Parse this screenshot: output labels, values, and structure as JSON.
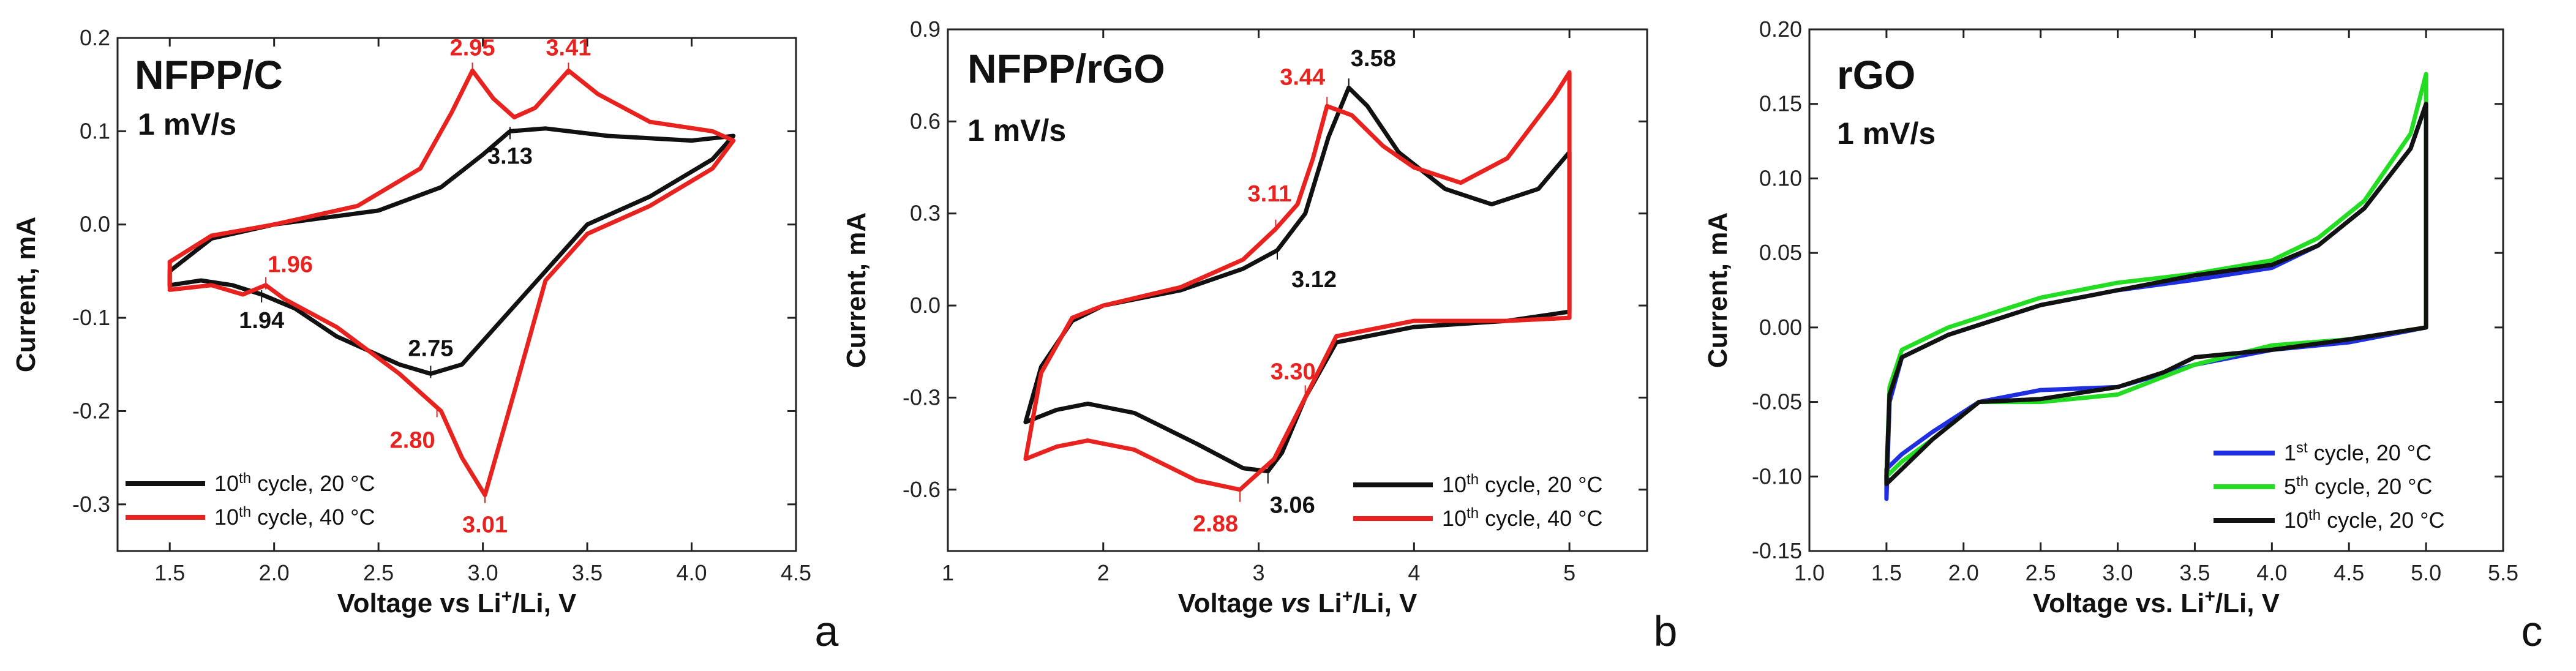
{
  "chart_data": [
    {
      "panel_id": "a",
      "type": "line",
      "title": "NFPP/C",
      "rate_label": "1 mV/s",
      "panel_letter": "a",
      "xlabel_parts": [
        "Voltage vs Li",
        "+",
        "/Li, V"
      ],
      "ylabel": "Current, mA",
      "xlim": [
        1.25,
        4.5
      ],
      "ylim": [
        -0.35,
        0.2
      ],
      "xticks": [
        "1.5",
        "2.0",
        "2.5",
        "3.0",
        "3.5",
        "4.0",
        "4.5"
      ],
      "yticks": [
        "-0.3",
        "-0.2",
        "-0.1",
        "0.0",
        "0.1",
        "0.2"
      ],
      "series": [
        {
          "name": "10th cycle, 20 °C",
          "legend_base": "10",
          "legend_sup": "th",
          "legend_rest": " cycle, 20 °C",
          "color": "#111111",
          "points": [
            [
              1.5,
              -0.05
            ],
            [
              1.7,
              -0.015
            ],
            [
              2.0,
              0.0
            ],
            [
              2.5,
              0.015
            ],
            [
              2.8,
              0.04
            ],
            [
              3.0,
              0.075
            ],
            [
              3.13,
              0.1
            ],
            [
              3.3,
              0.103
            ],
            [
              3.6,
              0.095
            ],
            [
              4.0,
              0.09
            ],
            [
              4.2,
              0.095
            ],
            [
              4.1,
              0.07
            ],
            [
              3.8,
              0.03
            ],
            [
              3.5,
              0.0
            ],
            [
              3.3,
              -0.05
            ],
            [
              3.1,
              -0.1
            ],
            [
              2.9,
              -0.15
            ],
            [
              2.75,
              -0.16
            ],
            [
              2.6,
              -0.15
            ],
            [
              2.3,
              -0.12
            ],
            [
              2.1,
              -0.09
            ],
            [
              1.94,
              -0.075
            ],
            [
              1.8,
              -0.065
            ],
            [
              1.65,
              -0.06
            ],
            [
              1.5,
              -0.065
            ]
          ]
        },
        {
          "name": "10th cycle, 40 °C",
          "legend_base": "10",
          "legend_sup": "th",
          "legend_rest": " cycle, 40 °C",
          "color": "#e8231f",
          "points": [
            [
              1.5,
              -0.04
            ],
            [
              1.7,
              -0.012
            ],
            [
              2.0,
              0.0
            ],
            [
              2.4,
              0.02
            ],
            [
              2.7,
              0.06
            ],
            [
              2.85,
              0.12
            ],
            [
              2.95,
              0.165
            ],
            [
              3.05,
              0.135
            ],
            [
              3.15,
              0.115
            ],
            [
              3.25,
              0.125
            ],
            [
              3.41,
              0.165
            ],
            [
              3.55,
              0.14
            ],
            [
              3.8,
              0.11
            ],
            [
              4.1,
              0.1
            ],
            [
              4.2,
              0.09
            ],
            [
              4.1,
              0.06
            ],
            [
              3.8,
              0.02
            ],
            [
              3.5,
              -0.01
            ],
            [
              3.3,
              -0.06
            ],
            [
              3.15,
              -0.18
            ],
            [
              3.01,
              -0.29
            ],
            [
              2.9,
              -0.25
            ],
            [
              2.8,
              -0.2
            ],
            [
              2.6,
              -0.16
            ],
            [
              2.3,
              -0.11
            ],
            [
              2.05,
              -0.08
            ],
            [
              1.96,
              -0.065
            ],
            [
              1.85,
              -0.075
            ],
            [
              1.7,
              -0.065
            ],
            [
              1.5,
              -0.07
            ]
          ]
        }
      ],
      "annotations": [
        {
          "text": "2.95",
          "x": 2.95,
          "y": 0.167,
          "color": "red"
        },
        {
          "text": "3.41",
          "x": 3.41,
          "y": 0.167,
          "color": "red"
        },
        {
          "text": "3.13",
          "x": 3.13,
          "y": 0.098,
          "color": "black"
        },
        {
          "text": "1.96",
          "x": 1.96,
          "y": -0.063,
          "color": "red"
        },
        {
          "text": "1.94",
          "x": 1.94,
          "y": -0.077,
          "color": "black"
        },
        {
          "text": "2.75",
          "x": 2.75,
          "y": -0.158,
          "color": "black"
        },
        {
          "text": "2.80",
          "x": 2.78,
          "y": -0.2,
          "color": "red"
        },
        {
          "text": "3.01",
          "x": 3.01,
          "y": -0.292,
          "color": "red"
        }
      ],
      "legend_position": "bottom-left"
    },
    {
      "panel_id": "b",
      "type": "line",
      "title": "NFPP/rGO",
      "rate_label": "1 mV/s",
      "panel_letter": "b",
      "xlabel_parts": [
        "Voltage ",
        "vs",
        " Li",
        "+",
        "/Li, V"
      ],
      "ylabel": "Current, mA",
      "xlim": [
        1,
        5.5
      ],
      "ylim": [
        -0.8,
        0.9
      ],
      "xticks": [
        "1",
        "2",
        "3",
        "4",
        "5"
      ],
      "yticks": [
        "-0.6",
        "-0.3",
        "0.0",
        "0.3",
        "0.6",
        "0.9"
      ],
      "series": [
        {
          "name": "10th cycle, 20 °C",
          "legend_base": "10",
          "legend_sup": "th",
          "legend_rest": " cycle, 20 °C",
          "color": "#111111",
          "points": [
            [
              1.5,
              -0.38
            ],
            [
              1.6,
              -0.2
            ],
            [
              1.8,
              -0.05
            ],
            [
              2.0,
              0.0
            ],
            [
              2.5,
              0.05
            ],
            [
              2.9,
              0.12
            ],
            [
              3.12,
              0.18
            ],
            [
              3.3,
              0.3
            ],
            [
              3.45,
              0.55
            ],
            [
              3.58,
              0.71
            ],
            [
              3.7,
              0.65
            ],
            [
              3.9,
              0.5
            ],
            [
              4.2,
              0.38
            ],
            [
              4.5,
              0.33
            ],
            [
              4.8,
              0.38
            ],
            [
              5.0,
              0.5
            ],
            [
              5.0,
              -0.02
            ],
            [
              4.6,
              -0.05
            ],
            [
              4.0,
              -0.07
            ],
            [
              3.5,
              -0.12
            ],
            [
              3.3,
              -0.3
            ],
            [
              3.15,
              -0.48
            ],
            [
              3.06,
              -0.54
            ],
            [
              2.9,
              -0.53
            ],
            [
              2.6,
              -0.45
            ],
            [
              2.2,
              -0.35
            ],
            [
              1.9,
              -0.32
            ],
            [
              1.7,
              -0.34
            ],
            [
              1.5,
              -0.38
            ]
          ]
        },
        {
          "name": "10th cycle, 40 °C",
          "legend_base": "10",
          "legend_sup": "th",
          "legend_rest": " cycle, 40 °C",
          "color": "#e8231f",
          "points": [
            [
              1.5,
              -0.5
            ],
            [
              1.6,
              -0.22
            ],
            [
              1.8,
              -0.04
            ],
            [
              2.0,
              0.0
            ],
            [
              2.5,
              0.06
            ],
            [
              2.9,
              0.15
            ],
            [
              3.11,
              0.25
            ],
            [
              3.25,
              0.33
            ],
            [
              3.35,
              0.48
            ],
            [
              3.44,
              0.65
            ],
            [
              3.6,
              0.62
            ],
            [
              3.8,
              0.52
            ],
            [
              4.0,
              0.45
            ],
            [
              4.3,
              0.4
            ],
            [
              4.6,
              0.48
            ],
            [
              4.9,
              0.68
            ],
            [
              5.0,
              0.76
            ],
            [
              5.0,
              -0.04
            ],
            [
              4.6,
              -0.05
            ],
            [
              4.0,
              -0.05
            ],
            [
              3.5,
              -0.1
            ],
            [
              3.3,
              -0.3
            ],
            [
              3.1,
              -0.5
            ],
            [
              2.88,
              -0.6
            ],
            [
              2.6,
              -0.57
            ],
            [
              2.2,
              -0.47
            ],
            [
              1.9,
              -0.44
            ],
            [
              1.7,
              -0.46
            ],
            [
              1.5,
              -0.5
            ]
          ]
        }
      ],
      "annotations": [
        {
          "text": "3.44",
          "x": 3.44,
          "y": 0.66,
          "color": "red"
        },
        {
          "text": "3.58",
          "x": 3.58,
          "y": 0.72,
          "color": "black"
        },
        {
          "text": "3.11",
          "x": 3.11,
          "y": 0.26,
          "color": "red"
        },
        {
          "text": "3.12",
          "x": 3.12,
          "y": 0.17,
          "color": "black"
        },
        {
          "text": "3.30",
          "x": 3.3,
          "y": -0.28,
          "color": "red"
        },
        {
          "text": "3.06",
          "x": 3.06,
          "y": -0.56,
          "color": "black"
        },
        {
          "text": "2.88",
          "x": 2.88,
          "y": -0.62,
          "color": "red"
        }
      ],
      "legend_position": "bottom-right"
    },
    {
      "panel_id": "c",
      "type": "line",
      "title": "rGO",
      "rate_label": "1 mV/s",
      "panel_letter": "c",
      "xlabel_parts": [
        "Voltage vs. Li",
        "+",
        "/Li, V"
      ],
      "ylabel": "Current, mA",
      "xlim": [
        1.0,
        5.5
      ],
      "ylim": [
        -0.15,
        0.2
      ],
      "xticks": [
        "1.0",
        "1.5",
        "2.0",
        "2.5",
        "3.0",
        "3.5",
        "4.0",
        "4.5",
        "5.0",
        "5.5"
      ],
      "yticks": [
        "-0.15",
        "-0.10",
        "-0.05",
        "0.00",
        "0.05",
        "0.10",
        "0.15",
        "0.20"
      ],
      "series": [
        {
          "name": "1st cycle, 20 °C",
          "legend_base": "1",
          "legend_sup": "st",
          "legend_rest": " cycle, 20 °C",
          "color": "#1f2ee0",
          "points": [
            [
              1.5,
              -0.115
            ],
            [
              1.52,
              -0.05
            ],
            [
              1.6,
              -0.02
            ],
            [
              1.9,
              -0.005
            ],
            [
              2.5,
              0.015
            ],
            [
              3.0,
              0.025
            ],
            [
              3.5,
              0.032
            ],
            [
              4.0,
              0.04
            ],
            [
              4.3,
              0.055
            ],
            [
              4.6,
              0.08
            ],
            [
              4.9,
              0.12
            ],
            [
              5.0,
              0.15
            ],
            [
              5.0,
              0.0
            ],
            [
              4.5,
              -0.01
            ],
            [
              4.0,
              -0.015
            ],
            [
              3.5,
              -0.025
            ],
            [
              3.0,
              -0.04
            ],
            [
              2.5,
              -0.042
            ],
            [
              2.1,
              -0.05
            ],
            [
              1.8,
              -0.07
            ],
            [
              1.6,
              -0.085
            ],
            [
              1.5,
              -0.095
            ]
          ]
        },
        {
          "name": "5th cycle, 20 °C",
          "legend_base": "5",
          "legend_sup": "th",
          "legend_rest": " cycle, 20 °C",
          "color": "#22dd22",
          "points": [
            [
              1.5,
              -0.1
            ],
            [
              1.52,
              -0.04
            ],
            [
              1.6,
              -0.015
            ],
            [
              1.9,
              0.0
            ],
            [
              2.5,
              0.02
            ],
            [
              3.0,
              0.03
            ],
            [
              3.5,
              0.036
            ],
            [
              4.0,
              0.045
            ],
            [
              4.3,
              0.06
            ],
            [
              4.6,
              0.085
            ],
            [
              4.9,
              0.13
            ],
            [
              5.0,
              0.17
            ],
            [
              5.0,
              0.0
            ],
            [
              4.5,
              -0.008
            ],
            [
              4.0,
              -0.012
            ],
            [
              3.5,
              -0.025
            ],
            [
              3.0,
              -0.045
            ],
            [
              2.5,
              -0.05
            ],
            [
              2.1,
              -0.05
            ],
            [
              1.8,
              -0.075
            ],
            [
              1.6,
              -0.09
            ],
            [
              1.5,
              -0.1
            ]
          ]
        },
        {
          "name": "10th cycle, 20 °C",
          "legend_base": "10",
          "legend_sup": "th",
          "legend_rest": " cycle, 20 °C",
          "color": "#111111",
          "points": [
            [
              1.5,
              -0.1
            ],
            [
              1.52,
              -0.045
            ],
            [
              1.6,
              -0.02
            ],
            [
              1.9,
              -0.005
            ],
            [
              2.5,
              0.015
            ],
            [
              3.0,
              0.025
            ],
            [
              3.5,
              0.035
            ],
            [
              4.0,
              0.042
            ],
            [
              4.3,
              0.055
            ],
            [
              4.6,
              0.08
            ],
            [
              4.9,
              0.12
            ],
            [
              5.0,
              0.15
            ],
            [
              5.0,
              0.0
            ],
            [
              4.5,
              -0.008
            ],
            [
              4.0,
              -0.015
            ],
            [
              3.5,
              -0.02
            ],
            [
              3.3,
              -0.03
            ],
            [
              3.0,
              -0.04
            ],
            [
              2.5,
              -0.048
            ],
            [
              2.1,
              -0.05
            ],
            [
              1.8,
              -0.075
            ],
            [
              1.6,
              -0.095
            ],
            [
              1.5,
              -0.105
            ]
          ]
        }
      ],
      "annotations": [],
      "legend_position": "bottom-right"
    }
  ]
}
